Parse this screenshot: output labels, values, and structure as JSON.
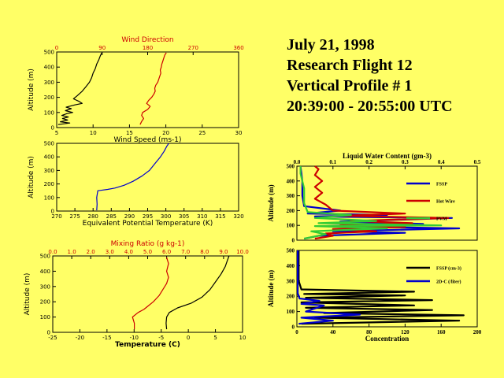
{
  "header": {
    "date": "July 21, 1998",
    "flight": "Research Flight 12",
    "profile": "Vertical Profile # 1",
    "time": "20:39:00 - 20:55:00 UTC"
  },
  "colors": {
    "background": "#FFFF66",
    "red": "#CC0000",
    "blue": "#0000CC",
    "green": "#33CC33",
    "black": "#000000"
  },
  "chart_data": [
    {
      "id": "wind",
      "type": "line",
      "ylabel": "Altitude (m)",
      "ylim": [
        0,
        500
      ],
      "yticks": [
        "0",
        "100",
        "200",
        "300",
        "400",
        "500"
      ],
      "top_axis": {
        "label": "Wind Direction",
        "xlim": [
          0,
          360
        ],
        "ticks": [
          "0",
          "90",
          "180",
          "270",
          "360"
        ],
        "color": "#CC0000"
      },
      "bottom_axis": {
        "label": "Wind Speed (ms-1)",
        "xlim": [
          5,
          30
        ],
        "ticks": [
          "5",
          "10",
          "15",
          "20",
          "25",
          "30"
        ],
        "color": "#000000"
      },
      "series": [
        {
          "name": "Wind Direction",
          "axis": "top",
          "color": "#CC0000",
          "points": [
            [
              165,
              20
            ],
            [
              168,
              40
            ],
            [
              172,
              60
            ],
            [
              168,
              80
            ],
            [
              170,
              100
            ],
            [
              180,
              120
            ],
            [
              185,
              140
            ],
            [
              178,
              160
            ],
            [
              182,
              180
            ],
            [
              188,
              200
            ],
            [
              192,
              220
            ],
            [
              195,
              240
            ],
            [
              194,
              260
            ],
            [
              196,
              280
            ],
            [
              200,
              300
            ],
            [
              202,
              320
            ],
            [
              204,
              340
            ],
            [
              206,
              360
            ],
            [
              205,
              380
            ],
            [
              207,
              400
            ],
            [
              208,
              420
            ],
            [
              210,
              440
            ],
            [
              212,
              460
            ],
            [
              214,
              480
            ],
            [
              217,
              495
            ]
          ]
        },
        {
          "name": "Wind Speed",
          "axis": "bottom",
          "color": "#000000",
          "points": [
            [
              5.2,
              20
            ],
            [
              6.8,
              30
            ],
            [
              5.5,
              38
            ],
            [
              6.5,
              50
            ],
            [
              5.8,
              60
            ],
            [
              6.6,
              70
            ],
            [
              5.7,
              80
            ],
            [
              6.4,
              92
            ],
            [
              7.2,
              100
            ],
            [
              6.2,
              112
            ],
            [
              7.0,
              125
            ],
            [
              6.3,
              135
            ],
            [
              7.5,
              150
            ],
            [
              8.5,
              160
            ],
            [
              8.0,
              175
            ],
            [
              7.3,
              190
            ],
            [
              7.8,
              210
            ],
            [
              8.5,
              240
            ],
            [
              9.0,
              270
            ],
            [
              9.5,
              300
            ],
            [
              9.8,
              330
            ],
            [
              10.0,
              360
            ],
            [
              10.3,
              390
            ],
            [
              10.5,
              420
            ],
            [
              10.8,
              450
            ],
            [
              11.0,
              475
            ],
            [
              11.2,
              495
            ]
          ]
        }
      ]
    },
    {
      "id": "theta_e",
      "type": "line",
      "ylabel": "Altitude (m)",
      "ylim": [
        0,
        500
      ],
      "yticks": [
        "0",
        "100",
        "200",
        "300",
        "400",
        "500"
      ],
      "bottom_axis": {
        "label": "Equivalent Potential Temperature (K)",
        "xlim": [
          270,
          320
        ],
        "ticks": [
          "270",
          "275",
          "280",
          "285",
          "290",
          "295",
          "300",
          "305",
          "310",
          "315",
          "320"
        ],
        "color": "#000000"
      },
      "series": [
        {
          "name": "Theta-e",
          "axis": "bottom",
          "color": "#0000CC",
          "points": [
            [
              281.0,
              5
            ],
            [
              281.1,
              50
            ],
            [
              281.0,
              100
            ],
            [
              281.3,
              150
            ],
            [
              284.0,
              160
            ],
            [
              286.0,
              170
            ],
            [
              288.5,
              190
            ],
            [
              291.0,
              220
            ],
            [
              293.5,
              260
            ],
            [
              295.5,
              300
            ],
            [
              297.0,
              350
            ],
            [
              298.5,
              400
            ],
            [
              299.5,
              440
            ],
            [
              300.3,
              480
            ],
            [
              300.8,
              500
            ]
          ]
        }
      ]
    },
    {
      "id": "temp_mixing",
      "type": "line",
      "ylabel": "Altitude (m)",
      "ylim": [
        0,
        500
      ],
      "yticks": [
        "0",
        "100",
        "200",
        "300",
        "400",
        "500"
      ],
      "top_axis": {
        "label": "Mixing Ratio (g kg-1)",
        "xlim": [
          0,
          10
        ],
        "ticks": [
          "0.0",
          "1.0",
          "2.0",
          "3.0",
          "4.0",
          "5.0",
          "6.0",
          "7.0",
          "8.0",
          "9.0",
          "10.0"
        ],
        "color": "#CC0000"
      },
      "bottom_axis": {
        "label": "Temperature (C)",
        "xlim": [
          -25,
          10
        ],
        "ticks": [
          "-25",
          "-20",
          "-15",
          "-10",
          "-5",
          "0",
          "5",
          "10"
        ],
        "color": "#000000"
      },
      "series": [
        {
          "name": "Mixing Ratio",
          "axis": "top",
          "color": "#CC0000",
          "points": [
            [
              4.3,
              20
            ],
            [
              4.3,
              60
            ],
            [
              4.2,
              100
            ],
            [
              4.5,
              130
            ],
            [
              4.8,
              150
            ],
            [
              5.0,
              170
            ],
            [
              5.3,
              200
            ],
            [
              5.6,
              240
            ],
            [
              5.8,
              280
            ],
            [
              6.0,
              320
            ],
            [
              6.1,
              360
            ],
            [
              6.0,
              400
            ],
            [
              6.1,
              450
            ],
            [
              6.0,
              490
            ]
          ]
        },
        {
          "name": "Temperature",
          "axis": "bottom",
          "color": "#000000",
          "points": [
            [
              -4.0,
              20
            ],
            [
              -4.1,
              60
            ],
            [
              -4.0,
              100
            ],
            [
              -3.5,
              130
            ],
            [
              -2.0,
              160
            ],
            [
              0.5,
              190
            ],
            [
              2.5,
              230
            ],
            [
              4.0,
              280
            ],
            [
              5.0,
              330
            ],
            [
              6.0,
              380
            ],
            [
              6.8,
              430
            ],
            [
              7.2,
              470
            ],
            [
              7.5,
              500
            ]
          ]
        }
      ]
    },
    {
      "id": "lwc",
      "type": "line",
      "title": "Liquid Water Content (gm-3)",
      "ylabel": "Altitude (m)",
      "ylim": [
        0,
        500
      ],
      "yticks": [
        "0",
        "100",
        "200",
        "300",
        "400",
        "500"
      ],
      "top_axis": {
        "xlim": [
          0,
          0.5
        ],
        "ticks": [
          "0.0",
          "0.1",
          "0.2",
          "0.3",
          "0.4",
          "0.5"
        ],
        "color": "#000000"
      },
      "series": [
        {
          "name": "FSSP",
          "color": "#0000CC",
          "points": [
            [
              0.02,
              10
            ],
            [
              0.06,
              30
            ],
            [
              0.3,
              50
            ],
            [
              0.1,
              60
            ],
            [
              0.45,
              80
            ],
            [
              0.08,
              95
            ],
            [
              0.35,
              110
            ],
            [
              0.12,
              125
            ],
            [
              0.43,
              150
            ],
            [
              0.05,
              160
            ],
            [
              0.25,
              170
            ],
            [
              0.03,
              180
            ],
            [
              0.12,
              200
            ],
            [
              0.02,
              230
            ],
            [
              0.015,
              300
            ],
            [
              0.015,
              400
            ],
            [
              0.01,
              500
            ]
          ]
        },
        {
          "name": "Hot Wire",
          "color": "#CC0000",
          "points": [
            [
              0.05,
              10
            ],
            [
              0.1,
              30
            ],
            [
              0.08,
              45
            ],
            [
              0.22,
              60
            ],
            [
              0.1,
              75
            ],
            [
              0.3,
              90
            ],
            [
              0.12,
              100
            ],
            [
              0.32,
              115
            ],
            [
              0.15,
              130
            ],
            [
              0.42,
              150
            ],
            [
              0.12,
              165
            ],
            [
              0.3,
              180
            ],
            [
              0.1,
              200
            ],
            [
              0.08,
              240
            ],
            [
              0.05,
              280
            ],
            [
              0.07,
              320
            ],
            [
              0.05,
              360
            ],
            [
              0.07,
              400
            ],
            [
              0.05,
              440
            ],
            [
              0.06,
              480
            ],
            [
              0.05,
              500
            ]
          ]
        },
        {
          "name": "PVM",
          "color": "#33CC33",
          "points": [
            [
              0.02,
              10
            ],
            [
              0.08,
              40
            ],
            [
              0.04,
              60
            ],
            [
              0.25,
              80
            ],
            [
              0.05,
              95
            ],
            [
              0.4,
              100
            ],
            [
              0.06,
              115
            ],
            [
              0.22,
              130
            ],
            [
              0.05,
              150
            ],
            [
              0.15,
              170
            ],
            [
              0.03,
              190
            ],
            [
              0.02,
              250
            ],
            [
              0.02,
              350
            ],
            [
              0.01,
              450
            ],
            [
              0.01,
              500
            ]
          ]
        }
      ],
      "legend": [
        "FSSP",
        "Hot Wire",
        "PVM"
      ]
    },
    {
      "id": "conc",
      "type": "line",
      "ylabel": "Altitude (m)",
      "xlabel": "Concentration",
      "ylim": [
        0,
        500
      ],
      "yticks": [
        "0",
        "100",
        "200",
        "300",
        "400",
        "500"
      ],
      "bottom_axis": {
        "label": "Concentration",
        "xlim": [
          0,
          200
        ],
        "ticks": [
          "0",
          "40",
          "80",
          "120",
          "160",
          "200"
        ],
        "color": "#000000"
      },
      "series": [
        {
          "name": "FSSP (cm-3)",
          "color": "#000000",
          "points": [
            [
              5,
              20
            ],
            [
              180,
              40
            ],
            [
              20,
              60
            ],
            [
              185,
              75
            ],
            [
              30,
              90
            ],
            [
              150,
              110
            ],
            [
              10,
              125
            ],
            [
              130,
              140
            ],
            [
              5,
              160
            ],
            [
              150,
              175
            ],
            [
              10,
              190
            ],
            [
              120,
              205
            ],
            [
              8,
              215
            ],
            [
              130,
              230
            ],
            [
              5,
              245
            ],
            [
              2,
              300
            ],
            [
              2,
              400
            ],
            [
              2,
              500
            ]
          ]
        },
        {
          "name": "2D-C (/liter)",
          "color": "#0000CC",
          "points": [
            [
              2,
              20
            ],
            [
              40,
              40
            ],
            [
              5,
              60
            ],
            [
              70,
              80
            ],
            [
              10,
              100
            ],
            [
              30,
              140
            ],
            [
              5,
              150
            ],
            [
              25,
              170
            ],
            [
              3,
              185
            ],
            [
              1,
              220
            ],
            [
              1,
              300
            ],
            [
              1,
              500
            ]
          ]
        }
      ],
      "legend": [
        "FSSP (cm-3)",
        "2D-C (/liter)"
      ]
    }
  ]
}
